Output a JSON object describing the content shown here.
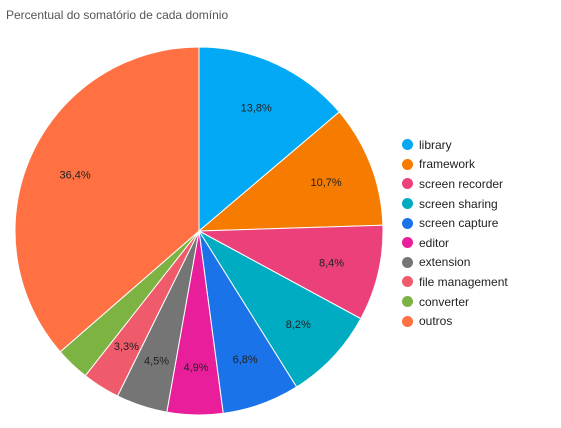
{
  "chart_data": {
    "type": "pie",
    "title": "Percentual do somatório de cada domínio",
    "legend_position": "right",
    "slices": [
      {
        "name": "library",
        "value": 13.8,
        "label": "13,8%",
        "color": "#03A9F4"
      },
      {
        "name": "framework",
        "value": 10.7,
        "label": "10,7%",
        "color": "#F57C00"
      },
      {
        "name": "screen recorder",
        "value": 8.4,
        "label": "8,4%",
        "color": "#EC407A"
      },
      {
        "name": "screen sharing",
        "value": 8.2,
        "label": "8,2%",
        "color": "#00ACC1"
      },
      {
        "name": "screen capture",
        "value": 6.8,
        "label": "6,8%",
        "color": "#1A73E8"
      },
      {
        "name": "editor",
        "value": 4.9,
        "label": "4,9%",
        "color": "#E91E9B"
      },
      {
        "name": "extension",
        "value": 4.5,
        "label": "4,5%",
        "color": "#757575"
      },
      {
        "name": "file management",
        "value": 3.3,
        "label": "3,3%",
        "color": "#EF5B6B"
      },
      {
        "name": "converter",
        "value": 3.0,
        "label": "",
        "color": "#7CB342"
      },
      {
        "name": "outros",
        "value": 36.4,
        "label": "36,4%",
        "color": "#FF7043"
      }
    ]
  }
}
